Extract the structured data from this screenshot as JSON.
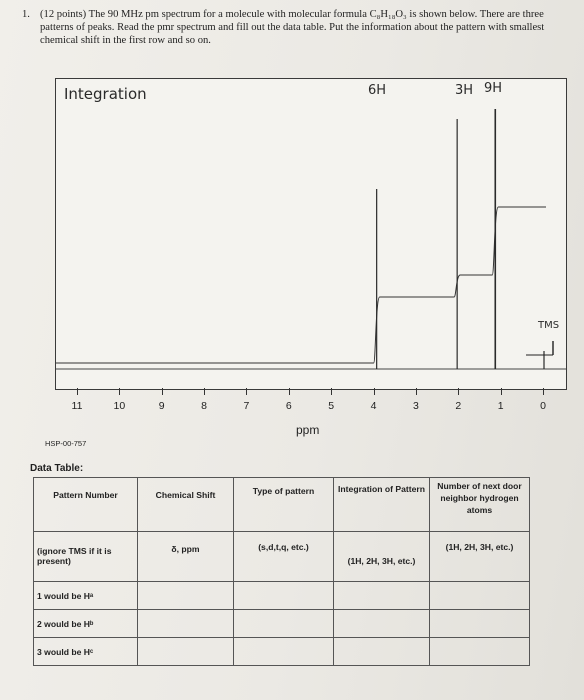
{
  "question": {
    "number": "1.",
    "text": "(12 points) The 90 MHz pm spectrum for a molecule with molecular formula C₈H₁₈O₃ is shown below. There are three patterns of peaks. Read the pmr spectrum and fill out the data table. Put the information about the pattern with smallest chemical shift in the first row and so on."
  },
  "spectrum": {
    "annotations": {
      "integration": "Integration",
      "peak_6h": "6H",
      "peak_3h": "3H",
      "peak_9h": "9H",
      "tms": "TMS"
    },
    "x_ticks": [
      "11",
      "10",
      "9",
      "8",
      "7",
      "6",
      "5",
      "4",
      "3",
      "2",
      "1",
      "0"
    ],
    "x_label": "ppm",
    "code": "HSP-00-757",
    "peaks_ppm": [
      3.95,
      2.05,
      1.15,
      0.0
    ]
  },
  "data_table": {
    "label": "Data Table:",
    "headers": [
      "Pattern Number",
      "Chemical Shift",
      "Type of pattern",
      "Integration of Pattern",
      "Number of next door neighbor hydrogen atoms"
    ],
    "units": [
      "(ignore TMS if it is present)",
      "δ, ppm",
      "(s,d,t,q, etc.)",
      "(1H, 2H, 3H, etc.)",
      "(1H, 2H, 3H, etc.)"
    ],
    "rows": [
      "1 would be Hᵃ",
      "2 would be Hᵇ",
      "3 would be Hᶜ"
    ]
  }
}
